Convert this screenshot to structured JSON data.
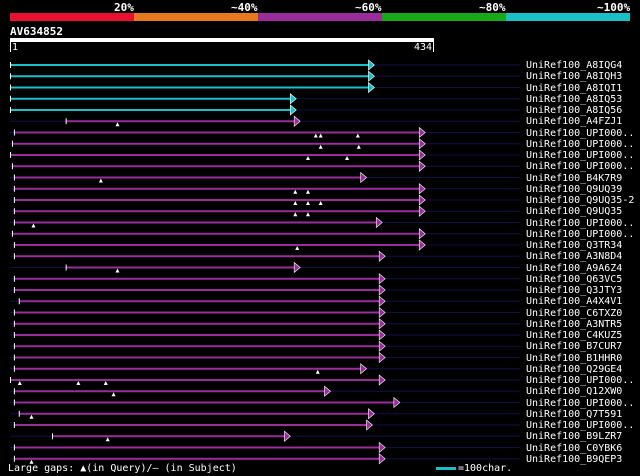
{
  "legend": {
    "segments": [
      {
        "color": "#e8102e"
      },
      {
        "color": "#e8781c"
      },
      {
        "color": "#9a2c9c"
      },
      {
        "color": "#18a818"
      },
      {
        "color": "#19c0c8"
      }
    ],
    "labels": [
      "20%",
      "~40%",
      "~60%",
      "~80%",
      "~100%"
    ]
  },
  "query": {
    "name": "AV634852",
    "start": "1",
    "end": "434",
    "length": 434
  },
  "hits": [
    {
      "label": "UniRef100_A8IQG4",
      "color": "#19c0c8",
      "start": 1,
      "end": 372,
      "gaps": []
    },
    {
      "label": "UniRef100_A8IQH3",
      "color": "#19c0c8",
      "start": 1,
      "end": 372,
      "gaps": []
    },
    {
      "label": "UniRef100_A8IQI1",
      "color": "#19c0c8",
      "start": 1,
      "end": 372,
      "gaps": []
    },
    {
      "label": "UniRef100_A8IQ53",
      "color": "#19c0c8",
      "start": 1,
      "end": 292,
      "gaps": []
    },
    {
      "label": "UniRef100_A8IQ56",
      "color": "#19c0c8",
      "start": 1,
      "end": 292,
      "gaps": []
    },
    {
      "label": "UniRef100_A4FZJ1",
      "color": "#9a2c9c",
      "start": 58,
      "end": 296,
      "gaps": [
        110
      ]
    },
    {
      "label": "UniRef100_UPI000..",
      "color": "#9a2c9c",
      "start": 5,
      "end": 424,
      "gaps": [
        313,
        318,
        356
      ]
    },
    {
      "label": "UniRef100_UPI000..",
      "color": "#9a2c9c",
      "start": 3,
      "end": 424,
      "gaps": [
        318,
        357
      ]
    },
    {
      "label": "UniRef100_UPI000..",
      "color": "#9a2c9c",
      "start": 1,
      "end": 424,
      "gaps": [
        305,
        345
      ]
    },
    {
      "label": "UniRef100_UPI000..",
      "color": "#9a2c9c",
      "start": 3,
      "end": 424,
      "gaps": []
    },
    {
      "label": "UniRef100_B4K7R9",
      "color": "#9a2c9c",
      "start": 5,
      "end": 364,
      "gaps": [
        93
      ]
    },
    {
      "label": "UniRef100_Q9UQ39",
      "color": "#9a2c9c",
      "start": 5,
      "end": 424,
      "gaps": [
        292,
        305
      ]
    },
    {
      "label": "UniRef100_Q9UQ35-2",
      "color": "#9a2c9c",
      "start": 5,
      "end": 424,
      "gaps": [
        292,
        305,
        318
      ]
    },
    {
      "label": "UniRef100_Q9UQ35",
      "color": "#9a2c9c",
      "start": 5,
      "end": 424,
      "gaps": [
        292,
        305
      ]
    },
    {
      "label": "UniRef100_UPI000..",
      "color": "#9a2c9c",
      "start": 5,
      "end": 380,
      "gaps": [
        24
      ]
    },
    {
      "label": "UniRef100_UPI000..",
      "color": "#9a2c9c",
      "start": 3,
      "end": 424,
      "gaps": []
    },
    {
      "label": "UniRef100_Q3TR34",
      "color": "#9a2c9c",
      "start": 5,
      "end": 424,
      "gaps": [
        294
      ]
    },
    {
      "label": "UniRef100_A3N8D4",
      "color": "#9a2c9c",
      "start": 5,
      "end": 383,
      "gaps": []
    },
    {
      "label": "UniRef100_A9A6Z4",
      "color": "#9a2c9c",
      "start": 58,
      "end": 296,
      "gaps": [
        110
      ]
    },
    {
      "label": "UniRef100_Q63VC5",
      "color": "#9a2c9c",
      "start": 5,
      "end": 383,
      "gaps": []
    },
    {
      "label": "UniRef100_Q3JTY3",
      "color": "#9a2c9c",
      "start": 5,
      "end": 383,
      "gaps": []
    },
    {
      "label": "UniRef100_A4X4V1",
      "color": "#9a2c9c",
      "start": 10,
      "end": 383,
      "gaps": []
    },
    {
      "label": "UniRef100_C6TXZ0",
      "color": "#9a2c9c",
      "start": 5,
      "end": 383,
      "gaps": []
    },
    {
      "label": "UniRef100_A3NTR5",
      "color": "#9a2c9c",
      "start": 5,
      "end": 383,
      "gaps": []
    },
    {
      "label": "UniRef100_C4KUZ5",
      "color": "#9a2c9c",
      "start": 5,
      "end": 383,
      "gaps": []
    },
    {
      "label": "UniRef100_B7CUR7",
      "color": "#9a2c9c",
      "start": 5,
      "end": 383,
      "gaps": []
    },
    {
      "label": "UniRef100_B1HHR0",
      "color": "#9a2c9c",
      "start": 5,
      "end": 383,
      "gaps": []
    },
    {
      "label": "UniRef100_Q29GE4",
      "color": "#9a2c9c",
      "start": 5,
      "end": 364,
      "gaps": [
        315
      ]
    },
    {
      "label": "UniRef100_UPI000..",
      "color": "#9a2c9c",
      "start": 1,
      "end": 383,
      "gaps": [
        10,
        70,
        98
      ]
    },
    {
      "label": "UniRef100_Q12XW0",
      "color": "#9a2c9c",
      "start": 5,
      "end": 327,
      "gaps": [
        106
      ]
    },
    {
      "label": "UniRef100_UPI000..",
      "color": "#9a2c9c",
      "start": 5,
      "end": 398,
      "gaps": []
    },
    {
      "label": "UniRef100_Q7T591",
      "color": "#9a2c9c",
      "start": 10,
      "end": 372,
      "gaps": [
        22
      ]
    },
    {
      "label": "UniRef100_UPI000..",
      "color": "#9a2c9c",
      "start": 5,
      "end": 370,
      "gaps": []
    },
    {
      "label": "UniRef100_B9LZR7",
      "color": "#9a2c9c",
      "start": 44,
      "end": 286,
      "gaps": [
        100
      ]
    },
    {
      "label": "UniRef100_C0YBK6",
      "color": "#9a2c9c",
      "start": 5,
      "end": 383,
      "gaps": []
    },
    {
      "label": "UniRef100_B9QEP3",
      "color": "#9a2c9c",
      "start": 5,
      "end": 383,
      "gaps": [
        22
      ]
    }
  ],
  "footer": {
    "gaps_text": "Large gaps: ▲(in Query)/– (in Subject)",
    "scale_text": "=100char."
  }
}
